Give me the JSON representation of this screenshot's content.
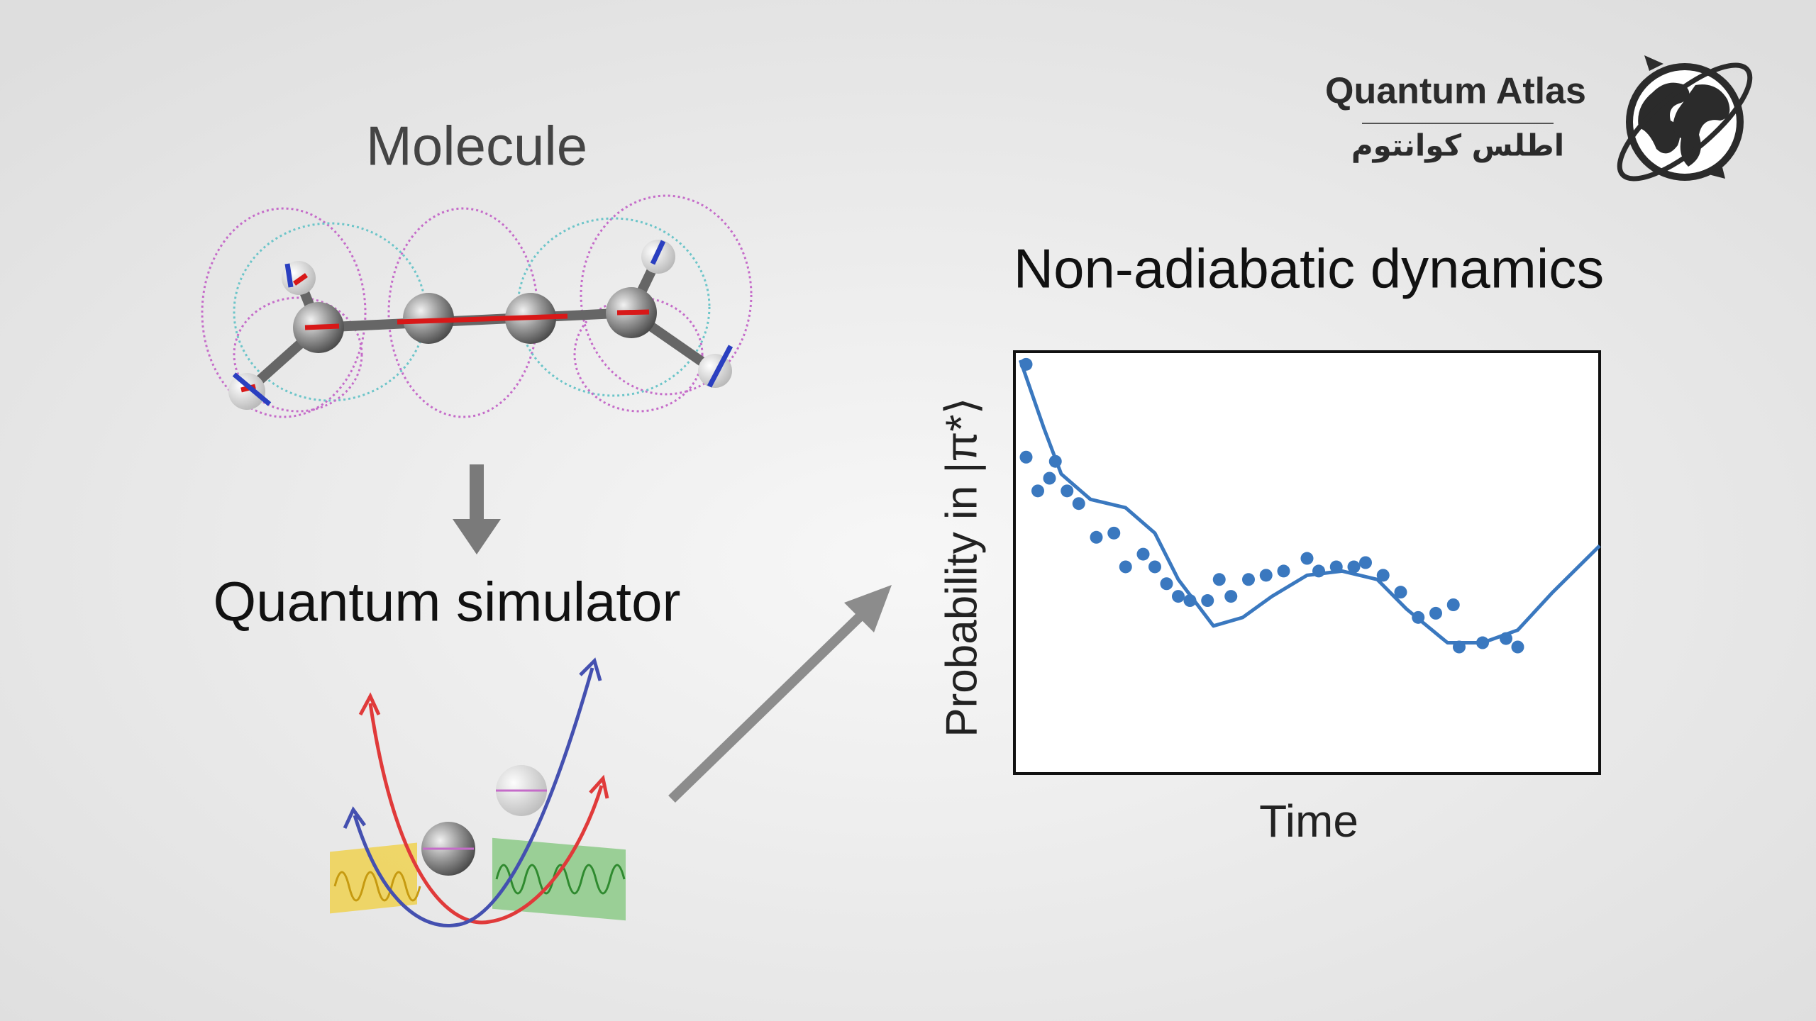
{
  "logo": {
    "title": "Quantum Atlas",
    "subtitle": "اطلس کوانتوم"
  },
  "diagram": {
    "molecule_label": "Molecule",
    "simulator_label": "Quantum simulator"
  },
  "chart_data": {
    "type": "line",
    "title": "Non-adiabatic dynamics",
    "x_label": "Time",
    "y_label": "Probability in |π*⟩",
    "xlim": [
      0,
      1
    ],
    "ylim": [
      0,
      1
    ],
    "grid": false,
    "series": [
      {
        "mark": "line",
        "color": "#3a78bf",
        "x": [
          0.01,
          0.05,
          0.08,
          0.13,
          0.19,
          0.24,
          0.28,
          0.34,
          0.39,
          0.44,
          0.5,
          0.56,
          0.62,
          0.67,
          0.74,
          0.8,
          0.86,
          0.92,
          1.0
        ],
        "values": [
          0.98,
          0.82,
          0.71,
          0.65,
          0.63,
          0.57,
          0.46,
          0.35,
          0.37,
          0.42,
          0.47,
          0.48,
          0.46,
          0.39,
          0.31,
          0.31,
          0.34,
          0.43,
          0.54
        ]
      },
      {
        "mark": "dots",
        "color": "#3a78bf",
        "x": [
          0.02,
          0.02,
          0.04,
          0.06,
          0.07,
          0.09,
          0.11,
          0.14,
          0.17,
          0.19,
          0.22,
          0.24,
          0.26,
          0.28,
          0.3,
          0.33,
          0.35,
          0.37,
          0.4,
          0.43,
          0.46,
          0.5,
          0.52,
          0.55,
          0.58,
          0.6,
          0.63,
          0.66,
          0.69,
          0.72,
          0.75,
          0.76,
          0.8,
          0.84,
          0.86
        ],
        "values": [
          0.97,
          0.75,
          0.67,
          0.7,
          0.74,
          0.67,
          0.64,
          0.56,
          0.57,
          0.49,
          0.52,
          0.49,
          0.45,
          0.42,
          0.41,
          0.41,
          0.46,
          0.42,
          0.46,
          0.47,
          0.48,
          0.51,
          0.48,
          0.49,
          0.49,
          0.5,
          0.47,
          0.43,
          0.37,
          0.38,
          0.4,
          0.3,
          0.31,
          0.32,
          0.3
        ]
      }
    ]
  }
}
